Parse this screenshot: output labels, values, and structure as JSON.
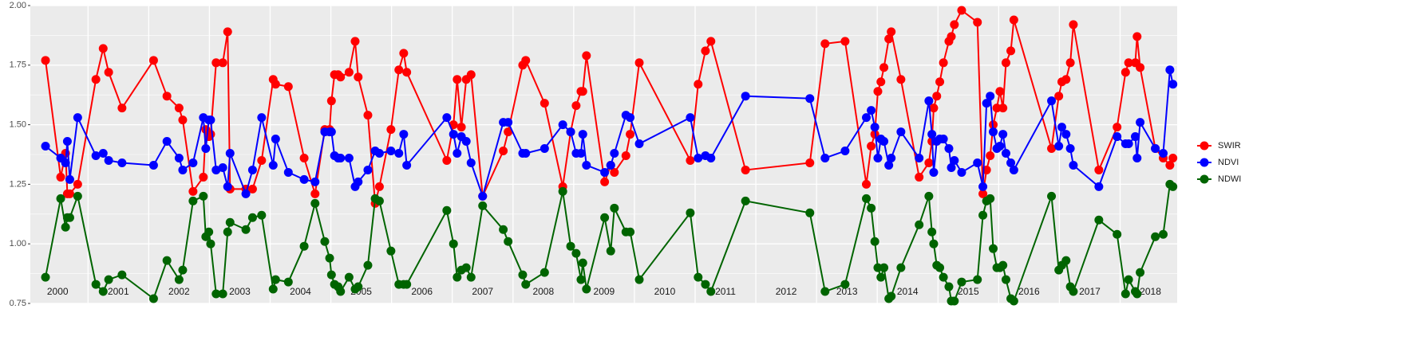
{
  "chart_data": {
    "type": "line",
    "x": [
      2000.3,
      2000.55,
      2000.63,
      2000.66,
      2000.7,
      2000.83,
      2001.13,
      2001.25,
      2001.34,
      2001.56,
      2002.08,
      2002.3,
      2002.5,
      2002.56,
      2002.73,
      2002.9,
      2002.94,
      2002.99,
      2003.02,
      2003.11,
      2003.22,
      2003.3,
      2003.34,
      2003.6,
      2003.71,
      2003.86,
      2004.05,
      2004.09,
      2004.3,
      2004.56,
      2004.74,
      2004.9,
      2004.98,
      2005.01,
      2005.06,
      2005.12,
      2005.16,
      2005.3,
      2005.4,
      2005.45,
      2005.61,
      2005.73,
      2005.8,
      2005.99,
      2006.12,
      2006.2,
      2006.25,
      2006.91,
      2007.02,
      2007.08,
      2007.15,
      2007.23,
      2007.31,
      2007.5,
      2007.84,
      2007.92,
      2008.16,
      2008.21,
      2008.52,
      2008.82,
      2008.95,
      2009.04,
      2009.12,
      2009.15,
      2009.21,
      2009.51,
      2009.61,
      2009.67,
      2009.86,
      2009.93,
      2010.08,
      2010.92,
      2011.05,
      2011.17,
      2011.26,
      2011.83,
      2012.89,
      2013.14,
      2013.47,
      2013.82,
      2013.9,
      2013.96,
      2014.01,
      2014.06,
      2014.11,
      2014.19,
      2014.23,
      2014.39,
      2014.69,
      2014.85,
      2014.9,
      2014.93,
      2014.98,
      2015.03,
      2015.09,
      2015.18,
      2015.22,
      2015.27,
      2015.39,
      2015.65,
      2015.74,
      2015.8,
      2015.86,
      2015.91,
      2015.97,
      2016.02,
      2016.07,
      2016.12,
      2016.2,
      2016.25,
      2016.87,
      2016.99,
      2017.04,
      2017.11,
      2017.18,
      2017.23,
      2017.65,
      2017.95,
      2018.09,
      2018.14,
      2018.25,
      2018.28,
      2018.33,
      2018.58,
      2018.71,
      2018.82,
      2018.87
    ],
    "series": [
      {
        "name": "SWIR",
        "color": "#ff0000",
        "values": [
          1.77,
          1.28,
          1.38,
          1.21,
          1.21,
          1.25,
          1.69,
          1.82,
          1.72,
          1.57,
          1.77,
          1.62,
          1.57,
          1.52,
          1.22,
          1.28,
          1.48,
          1.45,
          1.46,
          1.76,
          1.76,
          1.89,
          1.23,
          1.23,
          1.23,
          1.35,
          1.69,
          1.67,
          1.66,
          1.36,
          1.21,
          1.48,
          1.48,
          1.6,
          1.71,
          1.71,
          1.7,
          1.72,
          1.85,
          1.7,
          1.54,
          1.17,
          1.24,
          1.48,
          1.73,
          1.8,
          1.72,
          1.35,
          1.5,
          1.69,
          1.49,
          1.69,
          1.71,
          1.2,
          1.39,
          1.47,
          1.75,
          1.77,
          1.59,
          1.24,
          1.47,
          1.58,
          1.64,
          1.64,
          1.79,
          1.26,
          1.33,
          1.3,
          1.37,
          1.46,
          1.76,
          1.35,
          1.67,
          1.81,
          1.85,
          1.31,
          1.34,
          1.84,
          1.85,
          1.25,
          1.41,
          1.46,
          1.64,
          1.68,
          1.74,
          1.86,
          1.89,
          1.69,
          1.28,
          1.34,
          1.43,
          1.57,
          1.62,
          1.68,
          1.76,
          1.85,
          1.87,
          1.92,
          1.98,
          1.93,
          1.21,
          1.31,
          1.37,
          1.5,
          1.57,
          1.64,
          1.57,
          1.76,
          1.81,
          1.94,
          1.4,
          1.62,
          1.68,
          1.69,
          1.76,
          1.92,
          1.31,
          1.49,
          1.72,
          1.76,
          1.76,
          1.87,
          1.74,
          1.4,
          1.36,
          1.33,
          1.36
        ]
      },
      {
        "name": "NDVI",
        "color": "#0000ff",
        "values": [
          1.41,
          1.36,
          1.34,
          1.43,
          1.27,
          1.53,
          1.37,
          1.38,
          1.35,
          1.34,
          1.33,
          1.43,
          1.36,
          1.31,
          1.34,
          1.53,
          1.4,
          1.52,
          1.52,
          1.31,
          1.32,
          1.24,
          1.38,
          1.21,
          1.31,
          1.53,
          1.33,
          1.44,
          1.3,
          1.27,
          1.26,
          1.47,
          1.47,
          1.47,
          1.37,
          1.36,
          1.36,
          1.36,
          1.24,
          1.26,
          1.31,
          1.39,
          1.38,
          1.39,
          1.38,
          1.46,
          1.33,
          1.53,
          1.46,
          1.38,
          1.45,
          1.43,
          1.34,
          1.2,
          1.51,
          1.51,
          1.38,
          1.38,
          1.4,
          1.5,
          1.47,
          1.38,
          1.38,
          1.46,
          1.33,
          1.3,
          1.33,
          1.38,
          1.54,
          1.53,
          1.42,
          1.53,
          1.36,
          1.37,
          1.36,
          1.62,
          1.61,
          1.36,
          1.39,
          1.53,
          1.56,
          1.49,
          1.36,
          1.44,
          1.43,
          1.33,
          1.36,
          1.47,
          1.36,
          1.6,
          1.46,
          1.3,
          1.43,
          1.44,
          1.44,
          1.4,
          1.32,
          1.35,
          1.3,
          1.34,
          1.24,
          1.59,
          1.62,
          1.47,
          1.4,
          1.41,
          1.46,
          1.38,
          1.34,
          1.31,
          1.6,
          1.41,
          1.49,
          1.46,
          1.4,
          1.33,
          1.24,
          1.45,
          1.42,
          1.42,
          1.45,
          1.36,
          1.51,
          1.4,
          1.38,
          1.73,
          1.67
        ]
      },
      {
        "name": "NDWI",
        "color": "#006400",
        "values": [
          0.86,
          1.19,
          1.07,
          1.11,
          1.11,
          1.2,
          0.83,
          0.8,
          0.85,
          0.87,
          0.77,
          0.93,
          0.85,
          0.89,
          1.18,
          1.2,
          1.03,
          1.05,
          1.0,
          0.79,
          0.79,
          1.05,
          1.09,
          1.06,
          1.11,
          1.12,
          0.81,
          0.85,
          0.84,
          0.99,
          1.17,
          1.01,
          0.94,
          0.87,
          0.83,
          0.82,
          0.8,
          0.86,
          0.81,
          0.82,
          0.91,
          1.19,
          1.18,
          0.97,
          0.83,
          0.83,
          0.83,
          1.14,
          1.0,
          0.86,
          0.89,
          0.9,
          0.86,
          1.16,
          1.06,
          1.01,
          0.87,
          0.83,
          0.88,
          1.22,
          0.99,
          0.96,
          0.85,
          0.92,
          0.81,
          1.11,
          0.97,
          1.15,
          1.05,
          1.05,
          0.85,
          1.13,
          0.86,
          0.83,
          0.8,
          1.18,
          1.13,
          0.8,
          0.83,
          1.19,
          1.15,
          1.01,
          0.9,
          0.86,
          0.9,
          0.77,
          0.78,
          0.9,
          1.08,
          1.2,
          1.05,
          1.0,
          0.91,
          0.9,
          0.86,
          0.82,
          0.76,
          0.76,
          0.84,
          0.85,
          1.12,
          1.18,
          1.19,
          0.98,
          0.9,
          0.9,
          0.91,
          0.85,
          0.77,
          0.76,
          1.2,
          0.89,
          0.91,
          0.93,
          0.82,
          0.8,
          1.1,
          1.04,
          0.79,
          0.85,
          0.8,
          0.79,
          0.88,
          1.03,
          1.04,
          1.25,
          1.24
        ]
      }
    ],
    "xlim": [
      2000.05,
      2018.94
    ],
    "year_labels": [
      {
        "value": 2000,
        "label": "2000"
      },
      {
        "value": 2001,
        "label": "2001"
      },
      {
        "value": 2002,
        "label": "2002"
      },
      {
        "value": 2003,
        "label": "2003"
      },
      {
        "value": 2004,
        "label": "2004"
      },
      {
        "value": 2005,
        "label": "2005"
      },
      {
        "value": 2006,
        "label": "2006"
      },
      {
        "value": 2007,
        "label": "2007"
      },
      {
        "value": 2008,
        "label": "2008"
      },
      {
        "value": 2009,
        "label": "2009"
      },
      {
        "value": 2010,
        "label": "2010"
      },
      {
        "value": 2011,
        "label": "2011"
      },
      {
        "value": 2012,
        "label": "2012"
      },
      {
        "value": 2013,
        "label": "2013"
      },
      {
        "value": 2014,
        "label": "2014"
      },
      {
        "value": 2015,
        "label": "2015"
      },
      {
        "value": 2016,
        "label": "2016"
      },
      {
        "value": 2017,
        "label": "2017"
      },
      {
        "value": 2018,
        "label": "2018"
      }
    ],
    "ylim": [
      0.75,
      2.0
    ],
    "yticks": [
      0.75,
      {
        "value": 1.0,
        "label": "1.00"
      },
      1.25,
      {
        "value": 1.5,
        "label": "1.50"
      },
      1.75,
      {
        "value": 2.0,
        "label": "2.00"
      }
    ],
    "grid": true,
    "legend": "right"
  }
}
